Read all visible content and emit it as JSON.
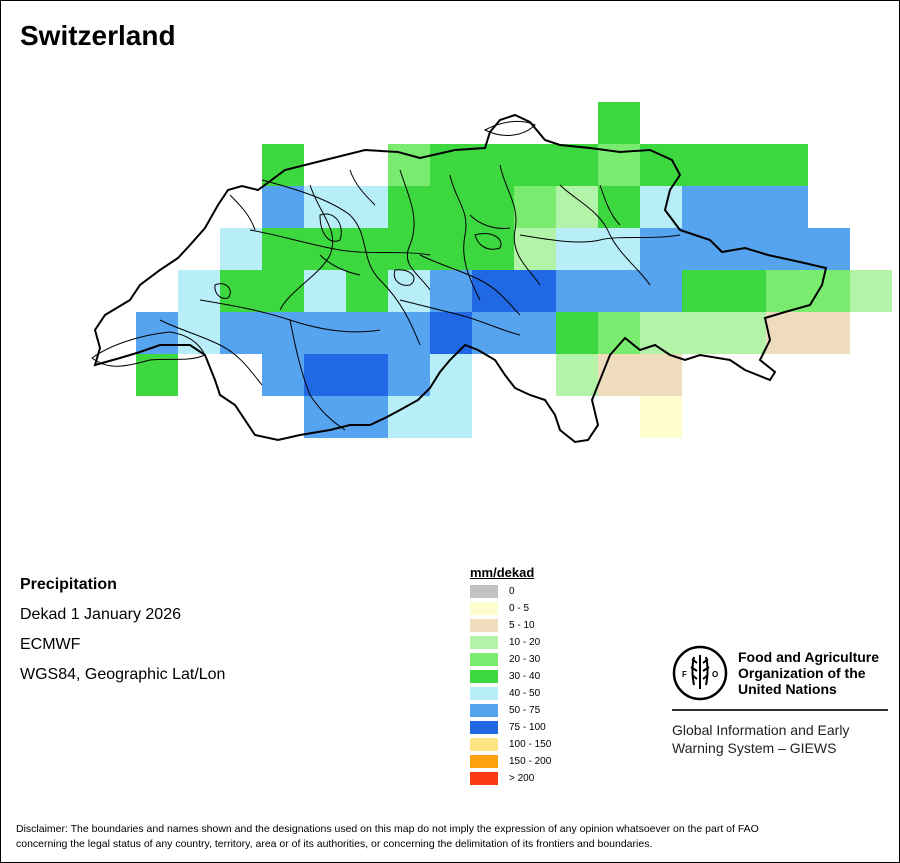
{
  "map": {
    "title": "Switzerland",
    "variable": "Precipitation",
    "period": "Dekad 1 January 2026",
    "model": "ECMWF",
    "projection": "WGS84, Geographic Lat/Lon",
    "boundary_color": "#000000"
  },
  "legend": {
    "title": "mm/dekad",
    "classes": [
      {
        "label": "0",
        "color": "#c2c2c2"
      },
      {
        "label": "0 - 5",
        "color": "#fffdd0"
      },
      {
        "label": "5 - 10",
        "color": "#efdcbd"
      },
      {
        "label": "10 - 20",
        "color": "#b3f3a8"
      },
      {
        "label": "20 - 30",
        "color": "#79ec6f"
      },
      {
        "label": "30 - 40",
        "color": "#3dd740"
      },
      {
        "label": "40 - 50",
        "color": "#b7eef7"
      },
      {
        "label": "50 - 75",
        "color": "#56a3ef"
      },
      {
        "label": "75 - 100",
        "color": "#2168e4"
      },
      {
        "label": "100 - 150",
        "color": "#fde584"
      },
      {
        "label": "150 - 200",
        "color": "#fda20d"
      },
      {
        "label": "> 200",
        "color": "#fa3b12"
      }
    ]
  },
  "organization": {
    "name_line1": "Food and Agriculture",
    "name_line2": "Organization of the",
    "name_line3": "United Nations",
    "system_line1": "Global Information and Early",
    "system_line2": "Warning System – GIEWS",
    "logo_letters": "FAO",
    "logo_motto": "FIAT PANIS"
  },
  "disclaimer": {
    "line1": "Disclaimer: The boundaries and names shown and the designations used on this map do not imply the expression of any opinion whatsoever on the part of FAO",
    "line2": "concerning the legal status of any country, territory, area or of its authorities, or concerning the delimitation of its frontiers and boundaries."
  },
  "grid_cells": [
    {
      "row": 0,
      "col": 9,
      "class": 5
    },
    {
      "row": 1,
      "col": 1,
      "class": 5
    },
    {
      "row": 1,
      "col": 4,
      "class": 4
    },
    {
      "row": 1,
      "col": 5,
      "class": 5
    },
    {
      "row": 1,
      "col": 6,
      "class": 5
    },
    {
      "row": 1,
      "col": 7,
      "class": 5
    },
    {
      "row": 1,
      "col": 8,
      "class": 5
    },
    {
      "row": 1,
      "col": 9,
      "class": 4
    },
    {
      "row": 1,
      "col": 10,
      "class": 5
    },
    {
      "row": 1,
      "col": 11,
      "class": 5
    },
    {
      "row": 1,
      "col": 12,
      "class": 5
    },
    {
      "row": 1,
      "col": 13,
      "class": 5
    },
    {
      "row": 2,
      "col": 1,
      "class": 7
    },
    {
      "row": 2,
      "col": 2,
      "class": 6
    },
    {
      "row": 2,
      "col": 3,
      "class": 6
    },
    {
      "row": 2,
      "col": 4,
      "class": 5
    },
    {
      "row": 2,
      "col": 5,
      "class": 5
    },
    {
      "row": 2,
      "col": 6,
      "class": 5
    },
    {
      "row": 2,
      "col": 7,
      "class": 4
    },
    {
      "row": 2,
      "col": 8,
      "class": 3
    },
    {
      "row": 2,
      "col": 9,
      "class": 5
    },
    {
      "row": 2,
      "col": 10,
      "class": 6
    },
    {
      "row": 2,
      "col": 11,
      "class": 7
    },
    {
      "row": 2,
      "col": 12,
      "class": 7
    },
    {
      "row": 2,
      "col": 13,
      "class": 7
    },
    {
      "row": 3,
      "col": 0,
      "class": 6
    },
    {
      "row": 3,
      "col": 1,
      "class": 5
    },
    {
      "row": 3,
      "col": 2,
      "class": 5
    },
    {
      "row": 3,
      "col": 3,
      "class": 5
    },
    {
      "row": 3,
      "col": 4,
      "class": 5
    },
    {
      "row": 3,
      "col": 5,
      "class": 5
    },
    {
      "row": 3,
      "col": 6,
      "class": 5
    },
    {
      "row": 3,
      "col": 7,
      "class": 3
    },
    {
      "row": 3,
      "col": 8,
      "class": 6
    },
    {
      "row": 3,
      "col": 9,
      "class": 6
    },
    {
      "row": 3,
      "col": 10,
      "class": 7
    },
    {
      "row": 3,
      "col": 11,
      "class": 7
    },
    {
      "row": 3,
      "col": 12,
      "class": 7
    },
    {
      "row": 3,
      "col": 13,
      "class": 7
    },
    {
      "row": 3,
      "col": 14,
      "class": 7
    },
    {
      "row": 4,
      "col": -1,
      "class": 6
    },
    {
      "row": 4,
      "col": 0,
      "class": 5
    },
    {
      "row": 4,
      "col": 1,
      "class": 5
    },
    {
      "row": 4,
      "col": 2,
      "class": 6
    },
    {
      "row": 4,
      "col": 3,
      "class": 5
    },
    {
      "row": 4,
      "col": 4,
      "class": 6
    },
    {
      "row": 4,
      "col": 5,
      "class": 7
    },
    {
      "row": 4,
      "col": 6,
      "class": 8
    },
    {
      "row": 4,
      "col": 7,
      "class": 8
    },
    {
      "row": 4,
      "col": 8,
      "class": 7
    },
    {
      "row": 4,
      "col": 9,
      "class": 7
    },
    {
      "row": 4,
      "col": 10,
      "class": 7
    },
    {
      "row": 4,
      "col": 11,
      "class": 5
    },
    {
      "row": 4,
      "col": 12,
      "class": 5
    },
    {
      "row": 4,
      "col": 13,
      "class": 4
    },
    {
      "row": 4,
      "col": 14,
      "class": 4
    },
    {
      "row": 4,
      "col": 15,
      "class": 3
    },
    {
      "row": 5,
      "col": -2,
      "class": 7
    },
    {
      "row": 5,
      "col": -1,
      "class": 6
    },
    {
      "row": 5,
      "col": 0,
      "class": 7
    },
    {
      "row": 5,
      "col": 1,
      "class": 7
    },
    {
      "row": 5,
      "col": 2,
      "class": 7
    },
    {
      "row": 5,
      "col": 3,
      "class": 7
    },
    {
      "row": 5,
      "col": 4,
      "class": 7
    },
    {
      "row": 5,
      "col": 5,
      "class": 8
    },
    {
      "row": 5,
      "col": 6,
      "class": 7
    },
    {
      "row": 5,
      "col": 7,
      "class": 7
    },
    {
      "row": 5,
      "col": 8,
      "class": 5
    },
    {
      "row": 5,
      "col": 9,
      "class": 4
    },
    {
      "row": 5,
      "col": 10,
      "class": 3
    },
    {
      "row": 5,
      "col": 11,
      "class": 3
    },
    {
      "row": 5,
      "col": 12,
      "class": 3
    },
    {
      "row": 5,
      "col": 13,
      "class": 2
    },
    {
      "row": 5,
      "col": 14,
      "class": 2
    },
    {
      "row": 6,
      "col": -2,
      "class": 5
    },
    {
      "row": 6,
      "col": 1,
      "class": 7
    },
    {
      "row": 6,
      "col": 2,
      "class": 8
    },
    {
      "row": 6,
      "col": 3,
      "class": 8
    },
    {
      "row": 6,
      "col": 4,
      "class": 7
    },
    {
      "row": 6,
      "col": 5,
      "class": 6
    },
    {
      "row": 6,
      "col": 8,
      "class": 3
    },
    {
      "row": 6,
      "col": 9,
      "class": 2
    },
    {
      "row": 6,
      "col": 10,
      "class": 2
    },
    {
      "row": 7,
      "col": 2,
      "class": 7
    },
    {
      "row": 7,
      "col": 3,
      "class": 7
    },
    {
      "row": 7,
      "col": 4,
      "class": 6
    },
    {
      "row": 7,
      "col": 5,
      "class": 6
    },
    {
      "row": 7,
      "col": 10,
      "class": 1
    }
  ]
}
